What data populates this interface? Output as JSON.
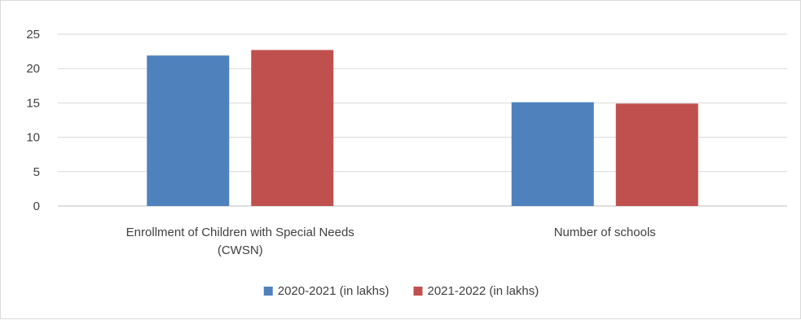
{
  "chart_data": {
    "type": "bar",
    "title": "",
    "xlabel": "",
    "ylabel": "",
    "categories": [
      [
        "Enrollment of Children with Special Needs",
        "(CWSN)"
      ],
      [
        "Number of schools"
      ]
    ],
    "series": [
      {
        "name": "2020-2021 (in lakhs)",
        "color": "#4f81bd",
        "values": [
          21.9,
          15.1
        ]
      },
      {
        "name": "2021-2022 (in lakhs)",
        "color": "#c0504d",
        "values": [
          22.7,
          14.9
        ]
      }
    ],
    "ylim": [
      0,
      25
    ],
    "yticks": [
      0,
      5,
      10,
      15,
      20,
      25
    ],
    "grid": true,
    "legend_position": "bottom"
  }
}
